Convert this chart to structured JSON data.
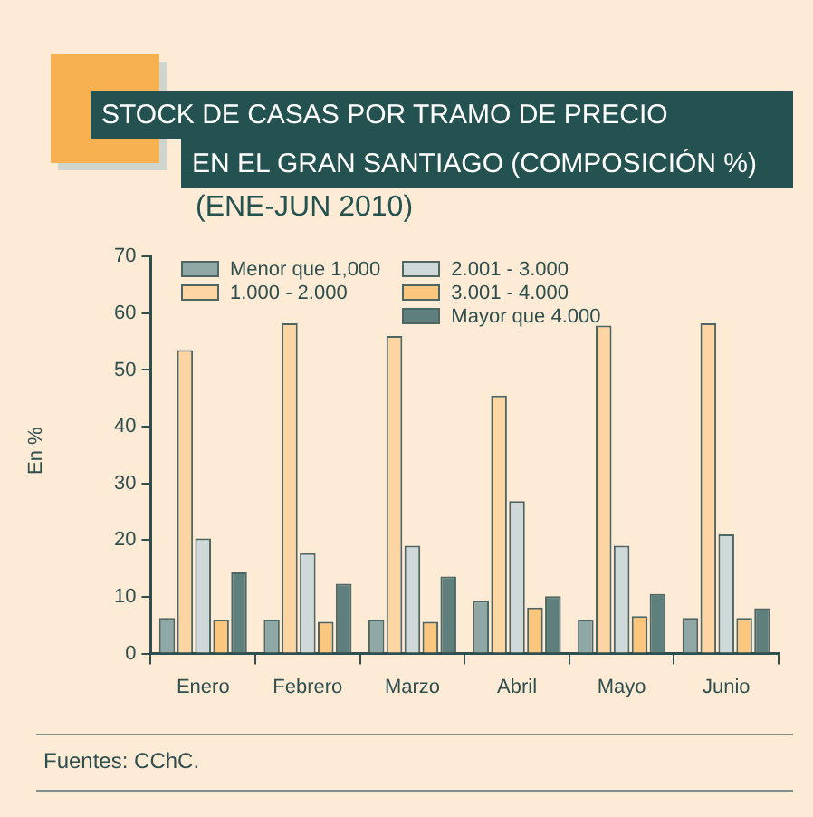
{
  "chart_data": {
    "type": "bar",
    "title": "STOCK DE CASAS POR TRAMO DE PRECIO\nEN EL GRAN SANTIAGO (COMPOSICIÓN %)",
    "subtitle": "(ENE-JUN 2010)",
    "ylabel": "En %",
    "categories": [
      "Enero",
      "Febrero",
      "Marzo",
      "Abril",
      "Mayo",
      "Junio"
    ],
    "series": [
      {
        "name": "Menor que 1,000",
        "color": "#8fa8a6",
        "values": [
          6.3,
          6.0,
          6.0,
          9.3,
          6.0,
          6.3
        ]
      },
      {
        "name": "1.000 - 2.000",
        "color": "#fdd5a3",
        "values": [
          53.5,
          58.2,
          56.0,
          45.5,
          57.8,
          58.2
        ]
      },
      {
        "name": "2.001 - 3.000",
        "color": "#cfd9d9",
        "values": [
          20.3,
          17.7,
          19.0,
          26.9,
          19.0,
          21.0
        ]
      },
      {
        "name": "3.001 - 4.000",
        "color": "#fbc67e",
        "values": [
          6.0,
          5.6,
          5.6,
          8.1,
          6.6,
          6.3
        ]
      },
      {
        "name": "Mayor que 4.000",
        "color": "#5e7f7c",
        "values": [
          14.3,
          12.3,
          13.6,
          10.1,
          10.5,
          8.0
        ]
      }
    ],
    "ylim": [
      0,
      70
    ],
    "yticks": [
      0,
      10,
      20,
      30,
      40,
      50,
      60,
      70
    ],
    "grid": false,
    "legend": "top left",
    "annotations": [
      "Fuentes: CChC."
    ]
  }
}
